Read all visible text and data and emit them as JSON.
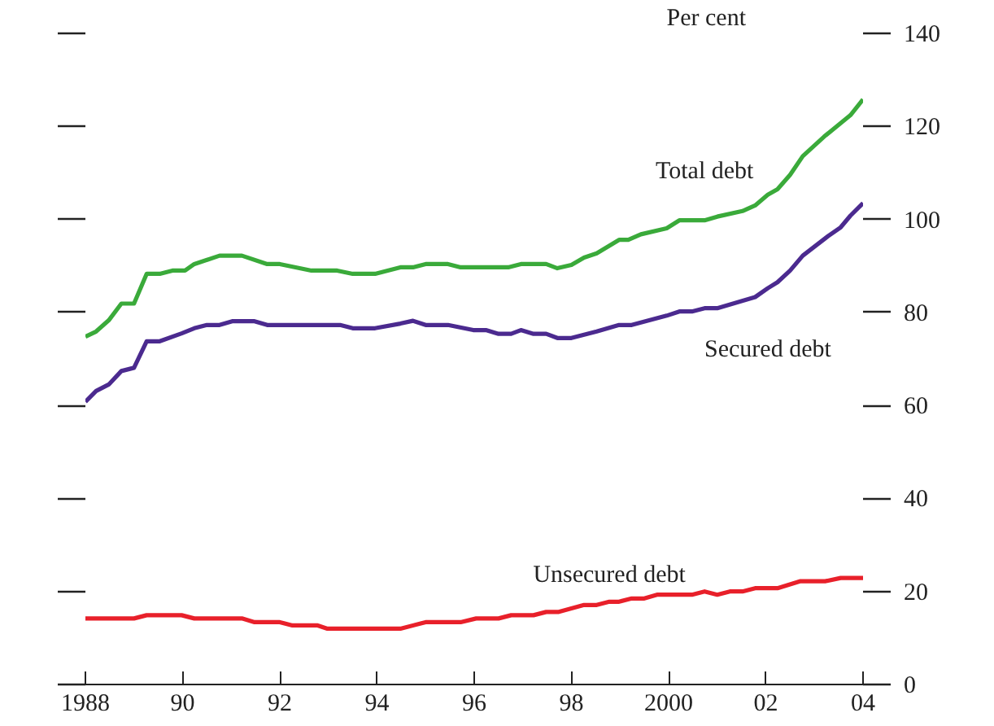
{
  "chart_data": {
    "type": "line",
    "ylabel": "Per cent",
    "xlim": [
      1988,
      2004
    ],
    "xticks": [
      {
        "value": 1988,
        "label": "1988"
      },
      {
        "value": 1990,
        "label": "90"
      },
      {
        "value": 1992,
        "label": "92"
      },
      {
        "value": 1994,
        "label": "94"
      },
      {
        "value": 1996,
        "label": "96"
      },
      {
        "value": 1998,
        "label": "98"
      },
      {
        "value": 2000,
        "label": "2000"
      },
      {
        "value": 2002,
        "label": "02"
      },
      {
        "value": 2004,
        "label": "04"
      }
    ],
    "ylim": [
      0,
      140
    ],
    "yticks": [
      0,
      20,
      40,
      60,
      80,
      100,
      120,
      140
    ],
    "grid": false,
    "line_style": "solid",
    "marker": "none",
    "series": [
      {
        "name": "Total debt",
        "color": "#3aaa3a",
        "x": [
          1988.0,
          1988.22,
          1988.48,
          1988.74,
          1989.0,
          1989.26,
          1989.53,
          1989.79,
          1990.05,
          1990.24,
          1990.76,
          1991.22,
          1991.74,
          1992.0,
          1992.65,
          1993.18,
          1993.5,
          1993.96,
          1994.48,
          1994.74,
          1995.0,
          1995.46,
          1995.72,
          1996.7,
          1996.96,
          1997.48,
          1997.71,
          1998.0,
          1998.26,
          1998.52,
          1998.98,
          1999.17,
          1999.43,
          1999.96,
          2000.22,
          2000.74,
          2001.0,
          2001.52,
          2001.78,
          2002.04,
          2002.24,
          2002.5,
          2002.76,
          2003.2,
          2003.74,
          2004.0
        ],
        "values": [
          74.8,
          75.9,
          78.3,
          81.9,
          81.9,
          88.3,
          88.3,
          89.0,
          89.0,
          90.4,
          92.2,
          92.2,
          90.4,
          90.4,
          89.0,
          89.0,
          88.3,
          88.3,
          89.7,
          89.7,
          90.4,
          90.4,
          89.7,
          89.7,
          90.4,
          90.4,
          89.5,
          90.2,
          91.8,
          92.7,
          95.6,
          95.6,
          96.8,
          98.1,
          99.8,
          99.8,
          100.6,
          101.8,
          103.0,
          105.3,
          106.5,
          109.6,
          113.6,
          117.8,
          122.4,
          125.8
        ]
      },
      {
        "name": "Secured debt",
        "color": "#4b2a8f",
        "x": [
          1988.0,
          1988.22,
          1988.48,
          1988.74,
          1989.0,
          1989.26,
          1989.53,
          1989.98,
          1990.24,
          1990.5,
          1990.76,
          1991.02,
          1991.48,
          1991.74,
          1993.24,
          1993.5,
          1993.96,
          1994.48,
          1994.74,
          1995.0,
          1995.46,
          1995.98,
          1996.24,
          1996.5,
          1996.76,
          1996.96,
          1997.22,
          1997.48,
          1997.71,
          1998.0,
          1998.52,
          1998.98,
          1999.24,
          1999.96,
          2000.22,
          2000.48,
          2000.74,
          2001.0,
          2001.78,
          2002.04,
          2002.24,
          2002.5,
          2002.76,
          2003.02,
          2003.28,
          2003.54,
          2003.74,
          2004.0
        ],
        "values": [
          60.8,
          63.1,
          64.5,
          67.4,
          68.1,
          73.8,
          73.8,
          75.5,
          76.6,
          77.3,
          77.3,
          78.1,
          78.1,
          77.3,
          77.3,
          76.6,
          76.6,
          77.6,
          78.2,
          77.3,
          77.3,
          76.2,
          76.2,
          75.4,
          75.4,
          76.2,
          75.4,
          75.4,
          74.5,
          74.5,
          75.9,
          77.3,
          77.3,
          79.3,
          80.2,
          80.2,
          80.9,
          80.9,
          83.3,
          85.2,
          86.5,
          89.0,
          92.2,
          94.3,
          96.4,
          98.3,
          100.8,
          103.5
        ]
      },
      {
        "name": "Unsecured debt",
        "color": "#e8202a",
        "x": [
          1988.0,
          1989.0,
          1989.26,
          1989.98,
          1990.24,
          1991.22,
          1991.48,
          1992.0,
          1992.26,
          1992.78,
          1992.98,
          1994.48,
          1995.0,
          1995.72,
          1996.04,
          1996.5,
          1996.76,
          1997.22,
          1997.48,
          1997.74,
          1998.26,
          1998.52,
          1998.78,
          1998.98,
          1999.24,
          1999.5,
          1999.76,
          2000.48,
          2000.74,
          2001.0,
          2001.26,
          2001.52,
          2001.78,
          2002.24,
          2002.7,
          2003.22,
          2003.54,
          2004.0
        ],
        "values": [
          14.2,
          14.2,
          14.9,
          14.9,
          14.2,
          14.2,
          13.4,
          13.4,
          12.7,
          12.7,
          12.0,
          12.0,
          13.4,
          13.4,
          14.2,
          14.2,
          14.9,
          14.9,
          15.6,
          15.6,
          17.1,
          17.1,
          17.8,
          17.8,
          18.5,
          18.5,
          19.3,
          19.3,
          20.0,
          19.3,
          20.0,
          20.0,
          20.7,
          20.7,
          22.2,
          22.2,
          22.9,
          22.9
        ]
      }
    ]
  }
}
